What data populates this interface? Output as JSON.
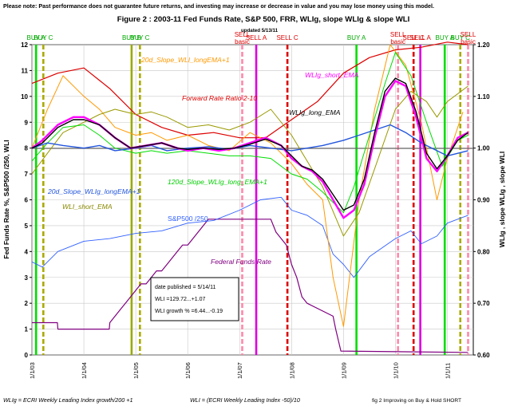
{
  "header": {
    "disclaimer": "Please note: Past performance does not guarantee future returns, and investing may increase or decrease in value and you may lose money using this model."
  },
  "chart_data": {
    "type": "line",
    "title": "Figure 2 : 2003-11  Fed Funds Rate,  S&P 500,  FRR,  WLIg,  slope WLIg  &  slope WLI",
    "subtitle": "updated 5/13/11",
    "ylabel": "Fed Funds Rate %,    S&P500 /250,    WLI",
    "y2label": "WLIg ,  slope WLIg ,  slope WLI",
    "ylim": [
      0,
      12
    ],
    "y2lim": [
      0.6,
      1.2
    ],
    "yticks": [
      "0",
      "1",
      "2",
      "3",
      "4",
      "5",
      "6",
      "7",
      "8",
      "9",
      "10",
      "11",
      "12"
    ],
    "y2ticks": [
      "0.60",
      "0.70",
      "0.80",
      "0.90",
      "1.00",
      "1.10",
      "1.20"
    ],
    "xlim": [
      2003.0,
      2011.5
    ],
    "xticks": [
      {
        "x": 2003.0,
        "label": "1/1/03"
      },
      {
        "x": 2004.0,
        "label": "1/1/04"
      },
      {
        "x": 2005.0,
        "label": "1/1/05"
      },
      {
        "x": 2006.0,
        "label": "1/1/06"
      },
      {
        "x": 2007.0,
        "label": "1/1/07"
      },
      {
        "x": 2008.0,
        "label": "1/1/08"
      },
      {
        "x": 2009.0,
        "label": "1/1/09"
      },
      {
        "x": 2010.0,
        "label": "1/1/10"
      },
      {
        "x": 2011.0,
        "label": "1/1/11"
      }
    ],
    "signals": [
      {
        "x": 2003.08,
        "label": "BUY A",
        "color": "#00dd00",
        "dash": "none"
      },
      {
        "x": 2003.22,
        "label": "BUY C",
        "color": "#aaaa00",
        "dash": "6,3"
      },
      {
        "x": 2004.92,
        "label": "BUY B",
        "color": "#99aa00",
        "dash": "none"
      },
      {
        "x": 2005.08,
        "label": "BUY C",
        "color": "#aaaa00",
        "dash": "6,3"
      },
      {
        "x": 2007.05,
        "label": "SELL basic",
        "color": "#ff88aa",
        "dash": "6,3"
      },
      {
        "x": 2007.32,
        "label": "SELL A",
        "color": "#dd00dd",
        "dash": "none"
      },
      {
        "x": 2007.92,
        "label": "SELL C",
        "color": "#dd0000",
        "dash": "6,3"
      },
      {
        "x": 2009.25,
        "label": "BUY A",
        "color": "#00dd00",
        "dash": "none"
      },
      {
        "x": 2010.05,
        "label": "SELL basic",
        "color": "#ff88aa",
        "dash": "6,3"
      },
      {
        "x": 2010.35,
        "label": "SELL C",
        "color": "#dd0000",
        "dash": "6,3"
      },
      {
        "x": 2010.48,
        "label": "SELL A",
        "color": "#dd00dd",
        "dash": "none"
      },
      {
        "x": 2010.95,
        "label": "BUY A",
        "color": "#00dd00",
        "dash": "none"
      },
      {
        "x": 2011.25,
        "label": "BUY C",
        "color": "#aaaa00",
        "dash": "6,3"
      },
      {
        "x": 2011.4,
        "label": "SELL basic",
        "color": "#ff88aa",
        "dash": "6,3"
      }
    ],
    "series": [
      {
        "name": "Forward Rate Ratio 2-10",
        "axis": "left",
        "color": "#dd0000",
        "width": 1.2,
        "x": [
          2003.0,
          2003.5,
          2004.0,
          2004.5,
          2005.0,
          2005.5,
          2006.0,
          2006.5,
          2007.0,
          2007.5,
          2008.0,
          2008.5,
          2009.0,
          2009.5,
          2010.0,
          2010.5,
          2011.0,
          2011.4
        ],
        "y": [
          10.5,
          10.9,
          11.1,
          10.3,
          9.3,
          8.8,
          8.5,
          8.6,
          8.4,
          8.4,
          9.1,
          9.8,
          10.9,
          11.5,
          11.8,
          11.9,
          12.1,
          12.0
        ]
      },
      {
        "name": "Federal Funds Rate",
        "axis": "left",
        "color": "#800080",
        "width": 1.2,
        "x": [
          2003.0,
          2003.49,
          2003.5,
          2004.49,
          2004.5,
          2004.6,
          2004.7,
          2004.8,
          2004.9,
          2005.0,
          2005.1,
          2005.2,
          2005.3,
          2005.4,
          2005.5,
          2005.6,
          2005.7,
          2005.8,
          2005.9,
          2006.0,
          2006.1,
          2006.2,
          2006.3,
          2006.4,
          2006.5,
          2007.6,
          2007.7,
          2007.8,
          2007.9,
          2008.0,
          2008.1,
          2008.2,
          2008.3,
          2008.8,
          2008.85,
          2008.95,
          2011.4
        ],
        "y": [
          1.25,
          1.25,
          1.0,
          1.0,
          1.25,
          1.5,
          1.75,
          2.0,
          2.25,
          2.5,
          2.75,
          2.75,
          3.0,
          3.25,
          3.25,
          3.5,
          3.75,
          4.0,
          4.25,
          4.25,
          4.5,
          4.75,
          5.0,
          5.25,
          5.25,
          5.25,
          4.75,
          4.5,
          4.25,
          3.5,
          3.0,
          2.25,
          2.0,
          1.5,
          1.0,
          0.15,
          0.1
        ]
      },
      {
        "name": "S&P500 /250",
        "axis": "left",
        "color": "#3060ff",
        "width": 0.9,
        "x": [
          2003.0,
          2003.2,
          2003.5,
          2004.0,
          2004.5,
          2005.0,
          2005.5,
          2006.0,
          2006.5,
          2007.0,
          2007.4,
          2007.8,
          2008.0,
          2008.3,
          2008.6,
          2008.8,
          2009.0,
          2009.2,
          2009.5,
          2010.0,
          2010.3,
          2010.5,
          2010.8,
          2011.0,
          2011.4
        ],
        "y": [
          3.6,
          3.4,
          4.0,
          4.4,
          4.5,
          4.7,
          4.8,
          5.1,
          5.2,
          5.6,
          6.0,
          6.1,
          5.6,
          5.4,
          5.0,
          3.9,
          3.5,
          3.0,
          3.8,
          4.5,
          4.8,
          4.3,
          4.6,
          5.1,
          5.4
        ]
      },
      {
        "name": "20d_Slope_WLI_longEMA+1",
        "axis": "left",
        "color": "#ff9900",
        "width": 1.0,
        "x": [
          2003.0,
          2003.3,
          2003.6,
          2004.0,
          2004.3,
          2004.6,
          2005.0,
          2005.3,
          2005.6,
          2006.0,
          2006.4,
          2006.8,
          2007.2,
          2007.6,
          2008.0,
          2008.3,
          2008.6,
          2008.8,
          2009.0,
          2009.3,
          2009.6,
          2009.9,
          2010.2,
          2010.5,
          2010.8,
          2011.0,
          2011.3
        ],
        "y": [
          8.0,
          9.5,
          10.8,
          10.0,
          9.5,
          8.8,
          8.5,
          8.6,
          8.3,
          8.5,
          8.1,
          7.9,
          8.6,
          8.2,
          7.4,
          6.6,
          6.0,
          3.0,
          1.1,
          6.0,
          9.5,
          12.0,
          11.2,
          9.0,
          6.0,
          7.6,
          9.4
        ]
      },
      {
        "name": "WLI_short_EMA",
        "axis": "left",
        "color": "#999900",
        "width": 1.0,
        "x": [
          2003.0,
          2003.3,
          2003.6,
          2004.0,
          2004.3,
          2004.6,
          2005.0,
          2005.3,
          2005.6,
          2006.0,
          2006.4,
          2006.8,
          2007.2,
          2007.6,
          2008.0,
          2008.3,
          2008.6,
          2009.0,
          2009.3,
          2009.6,
          2010.0,
          2010.3,
          2010.6,
          2010.8,
          2011.0,
          2011.4
        ],
        "y": [
          7.0,
          7.8,
          8.6,
          9.0,
          9.3,
          9.5,
          9.3,
          9.4,
          9.2,
          8.8,
          8.9,
          8.7,
          9.0,
          9.5,
          8.5,
          7.5,
          6.5,
          4.6,
          5.5,
          7.2,
          9.5,
          10.2,
          9.8,
          9.2,
          9.8,
          10.4
        ]
      },
      {
        "name": "120d_Slope_WLIg_long_EMA+1",
        "axis": "left",
        "color": "#00dd00",
        "width": 1.0,
        "x": [
          2003.0,
          2003.3,
          2003.6,
          2004.0,
          2004.3,
          2004.6,
          2005.0,
          2005.3,
          2005.6,
          2006.0,
          2006.4,
          2006.8,
          2007.2,
          2007.6,
          2008.0,
          2008.3,
          2008.6,
          2009.0,
          2009.2,
          2009.5,
          2009.8,
          2010.0,
          2010.3,
          2010.6,
          2010.9,
          2011.2,
          2011.4
        ],
        "y": [
          7.5,
          8.2,
          8.8,
          8.9,
          8.5,
          8.0,
          7.8,
          7.9,
          7.8,
          7.9,
          7.8,
          7.7,
          7.7,
          7.6,
          7.0,
          6.8,
          6.3,
          5.5,
          6.5,
          8.5,
          10.5,
          11.7,
          10.8,
          9.0,
          7.3,
          8.3,
          8.5
        ]
      },
      {
        "name": "20d_Slope_WLIg_longEMA+1",
        "axis": "left",
        "color": "#2255dd",
        "width": 1.4,
        "x": [
          2003.0,
          2003.3,
          2003.6,
          2004.0,
          2004.3,
          2004.6,
          2005.0,
          2005.3,
          2005.6,
          2006.0,
          2006.4,
          2006.8,
          2007.2,
          2007.6,
          2008.0,
          2008.3,
          2008.6,
          2009.0,
          2009.3,
          2009.6,
          2009.9,
          2010.2,
          2010.5,
          2010.8,
          2011.0,
          2011.4
        ],
        "y": [
          8.0,
          8.2,
          8.1,
          8.0,
          8.1,
          7.9,
          8.0,
          8.1,
          7.9,
          8.0,
          8.05,
          7.95,
          8.1,
          8.0,
          7.9,
          8.0,
          8.1,
          8.3,
          8.5,
          8.7,
          8.9,
          8.6,
          8.2,
          7.9,
          7.7,
          7.9
        ]
      },
      {
        "name": "WLIg_short_EMA",
        "axis": "left",
        "color": "#ff00ff",
        "width": 2.4,
        "x": [
          2003.0,
          2003.2,
          2003.5,
          2003.8,
          2004.0,
          2004.3,
          2004.6,
          2004.9,
          2005.2,
          2005.5,
          2005.8,
          2006.0,
          2006.3,
          2006.6,
          2006.9,
          2007.2,
          2007.5,
          2007.8,
          2008.0,
          2008.2,
          2008.4,
          2008.6,
          2008.8,
          2009.0,
          2009.2,
          2009.4,
          2009.6,
          2009.8,
          2010.0,
          2010.2,
          2010.4,
          2010.6,
          2010.8,
          2011.0,
          2011.2,
          2011.4
        ],
        "y": [
          8.0,
          8.3,
          8.9,
          9.2,
          9.2,
          8.9,
          8.4,
          8.0,
          8.1,
          8.2,
          8.0,
          7.9,
          8.0,
          7.9,
          8.0,
          8.2,
          8.4,
          8.1,
          7.6,
          7.3,
          7.1,
          6.7,
          6.0,
          5.3,
          5.6,
          6.6,
          8.4,
          10.0,
          10.6,
          10.4,
          9.2,
          7.6,
          7.1,
          7.7,
          8.4,
          8.6
        ]
      },
      {
        "name": "WLIg_long_EMA",
        "axis": "left",
        "color": "#000000",
        "width": 1.4,
        "x": [
          2003.0,
          2003.2,
          2003.5,
          2003.8,
          2004.0,
          2004.3,
          2004.6,
          2004.9,
          2005.2,
          2005.5,
          2005.8,
          2006.0,
          2006.3,
          2006.6,
          2006.9,
          2007.2,
          2007.5,
          2007.8,
          2008.0,
          2008.2,
          2008.4,
          2008.6,
          2008.8,
          2009.0,
          2009.2,
          2009.4,
          2009.6,
          2009.8,
          2010.0,
          2010.2,
          2010.4,
          2010.6,
          2010.8,
          2011.0,
          2011.2,
          2011.4
        ],
        "y": [
          8.0,
          8.2,
          8.8,
          9.1,
          9.1,
          8.9,
          8.4,
          8.0,
          8.1,
          8.2,
          8.0,
          7.95,
          8.0,
          7.95,
          8.0,
          8.15,
          8.35,
          8.1,
          7.7,
          7.3,
          7.15,
          6.8,
          6.2,
          5.6,
          5.8,
          6.8,
          8.6,
          10.2,
          10.7,
          10.5,
          9.4,
          7.8,
          7.2,
          7.7,
          8.3,
          8.6
        ]
      }
    ],
    "annotations": {
      "frr": "Forward Rate Ratio 2-10",
      "fed": "Federal Funds Rate",
      "spx": "S&P500 /250",
      "slope_wli": "20d_Slope_WLI_longEMA+1",
      "wli_short": "WLI_short_EMA",
      "slope120": "120d_Slope_WLIg_long_EMA+1",
      "slope20": "20d_Slope_WLIg_longEMA+1",
      "wlig_short": "WLIg_short_EMA",
      "wlig_long": "WLIg_long_EMA"
    },
    "infobox": {
      "line1": "date published =    5/14/11",
      "line2": "WLI =129.72...+1.07",
      "line3": "WLI growth % =6.44...-0.19"
    }
  },
  "footer": {
    "wlig_def": "WLIg = ECRI Weekly Leading Index growth/200 +1",
    "wli_def": "WLI = (ECRI Weekly Leading Index -50)/10",
    "fig_note": "fig 2  Improving on Buy & Hold SHORT"
  }
}
